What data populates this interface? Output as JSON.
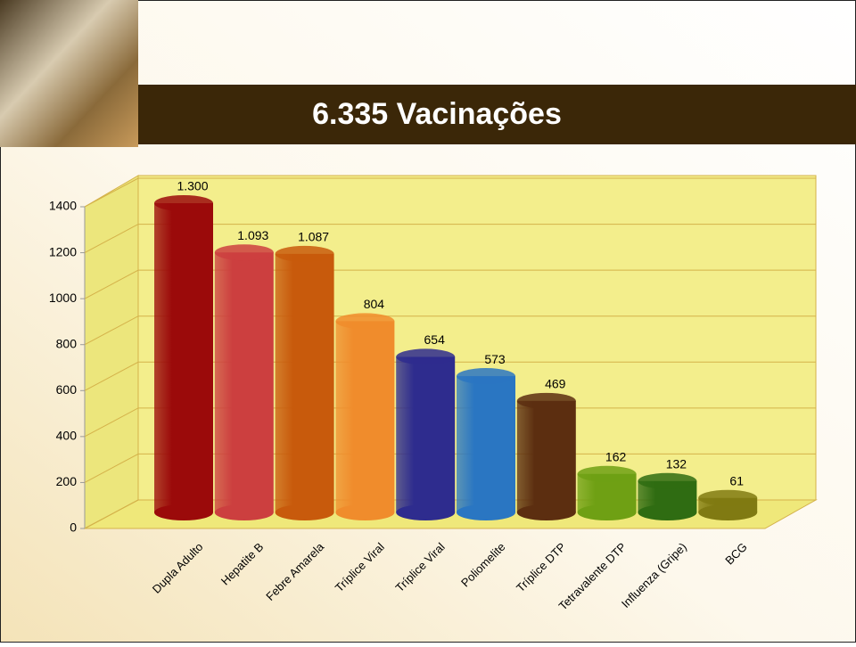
{
  "chart_data": {
    "type": "bar",
    "title": "6.335 Vacinações",
    "categories": [
      "Dupla Adulto",
      "Hepatite B",
      "Febre Amarela",
      "Tríplice Viral",
      "Tríplice Viral",
      "Poliomelite",
      "Tríplice DTP",
      "Tetravalente DTP",
      "Influenza (Gripe)",
      "BCG"
    ],
    "values": [
      1300,
      1093,
      1087,
      804,
      654,
      573,
      469,
      162,
      132,
      61
    ],
    "value_labels": [
      "1.300",
      "1.093",
      "1.087",
      "804",
      "654",
      "573",
      "469",
      "162",
      "132",
      "61"
    ],
    "colors": [
      "#9b0a0a",
      "#cc3f3f",
      "#c85a0c",
      "#f08c2c",
      "#2e2c8e",
      "#2a76c2",
      "#5c2e10",
      "#6fa014",
      "#2f6c12",
      "#807a12"
    ],
    "ylim": [
      0,
      1400
    ],
    "yticks": [
      0,
      200,
      400,
      600,
      800,
      1000,
      1200,
      1400
    ],
    "grid": true
  }
}
